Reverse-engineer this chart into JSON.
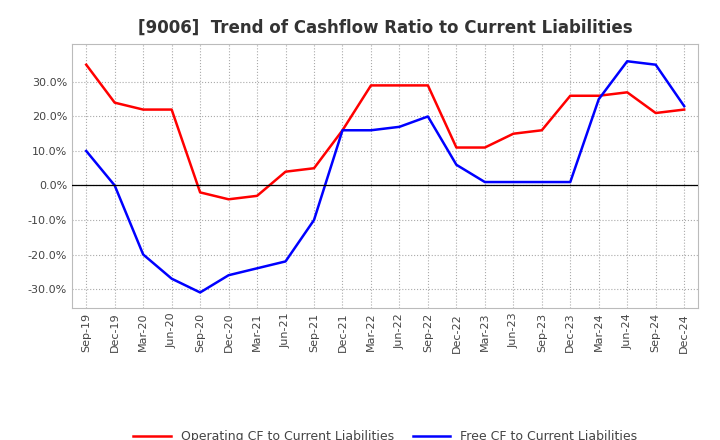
{
  "title": "[9006]  Trend of Cashflow Ratio to Current Liabilities",
  "x_labels": [
    "Sep-19",
    "Dec-19",
    "Mar-20",
    "Jun-20",
    "Sep-20",
    "Dec-20",
    "Mar-21",
    "Jun-21",
    "Sep-21",
    "Dec-21",
    "Mar-22",
    "Jun-22",
    "Sep-22",
    "Dec-22",
    "Mar-23",
    "Jun-23",
    "Sep-23",
    "Dec-23",
    "Mar-24",
    "Jun-24",
    "Sep-24",
    "Dec-24"
  ],
  "operating_cf": [
    0.35,
    0.24,
    0.22,
    0.22,
    -0.02,
    -0.04,
    -0.03,
    0.04,
    0.05,
    0.16,
    0.29,
    0.29,
    0.29,
    0.11,
    0.11,
    0.15,
    0.16,
    0.26,
    0.26,
    0.27,
    0.21,
    0.22
  ],
  "free_cf": [
    0.1,
    0.0,
    -0.2,
    -0.27,
    -0.31,
    -0.26,
    -0.24,
    -0.22,
    -0.1,
    0.16,
    0.16,
    0.17,
    0.2,
    0.06,
    0.01,
    0.01,
    0.01,
    0.01,
    0.25,
    0.36,
    0.35,
    0.23
  ],
  "operating_color": "#FF0000",
  "free_color": "#0000FF",
  "background_color": "#FFFFFF",
  "plot_bg_color": "#FFFFFF",
  "grid_color": "#AAAAAA",
  "ylim": [
    -0.355,
    0.41
  ],
  "yticks": [
    -0.3,
    -0.2,
    -0.1,
    0.0,
    0.1,
    0.2,
    0.3
  ],
  "legend_operating": "Operating CF to Current Liabilities",
  "legend_free": "Free CF to Current Liabilities",
  "line_width": 1.8,
  "title_fontsize": 12,
  "tick_fontsize": 8,
  "legend_fontsize": 9
}
